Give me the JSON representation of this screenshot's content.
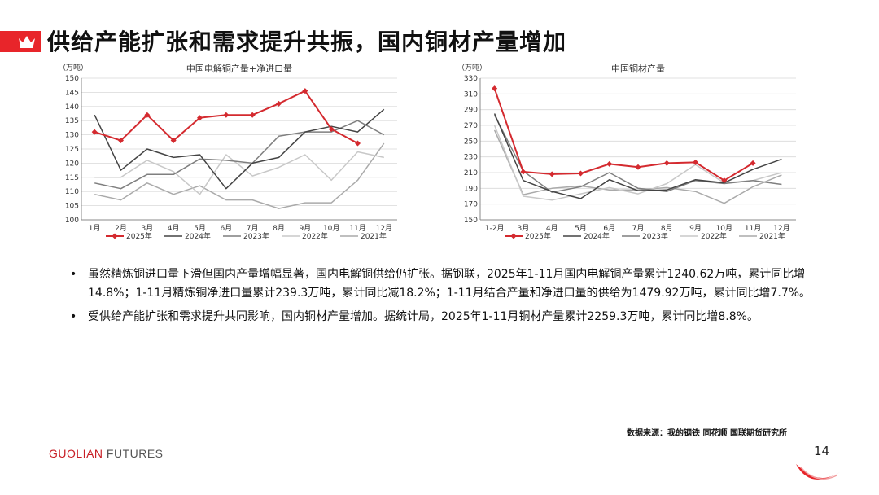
{
  "title": "供给产能扩张和需求提升共振，国内铜材产量增加",
  "icon": "crown-icon",
  "brand_color": "#e8252a",
  "chart_data": [
    {
      "type": "line",
      "title": "中国电解铜产量+净进口量",
      "ylabel": "（万吨）",
      "categories": [
        "1月",
        "2月",
        "3月",
        "4月",
        "5月",
        "6月",
        "7月",
        "8月",
        "9月",
        "10月",
        "11月",
        "12月"
      ],
      "ylim": [
        100,
        150
      ],
      "yticks": [
        100,
        105,
        110,
        115,
        120,
        125,
        130,
        135,
        140,
        145,
        150
      ],
      "grid": true,
      "legend_position": "bottom",
      "series": [
        {
          "name": "2025年",
          "color": "#d42a2f",
          "marker": "diamond",
          "values": [
            131,
            128,
            137,
            128,
            136,
            137,
            137,
            141,
            145.5,
            132,
            127,
            null
          ]
        },
        {
          "name": "2024年",
          "color": "#444444",
          "marker": "none",
          "values": [
            137,
            117.5,
            125,
            122,
            123,
            111,
            120,
            122,
            131,
            133,
            131,
            139
          ]
        },
        {
          "name": "2023年",
          "color": "#7f7f7f",
          "marker": "none",
          "values": [
            113,
            111,
            116,
            116,
            121.5,
            121,
            120,
            129.5,
            131,
            131,
            135,
            130
          ]
        },
        {
          "name": "2022年",
          "color": "#c8c8c8",
          "marker": "none",
          "values": [
            115,
            115,
            121,
            117,
            109,
            123,
            115.5,
            118.5,
            123,
            114,
            124,
            122
          ]
        },
        {
          "name": "2021年",
          "color": "#aaaaaa",
          "marker": "none",
          "values": [
            109,
            107,
            113,
            109,
            112,
            107,
            107,
            104,
            106,
            106,
            114,
            127
          ]
        }
      ]
    },
    {
      "type": "line",
      "title": "中国铜材产量",
      "ylabel": "（万吨）",
      "categories": [
        "1-2月",
        "3月",
        "4月",
        "5月",
        "6月",
        "7月",
        "8月",
        "9月",
        "10月",
        "11月",
        "12月"
      ],
      "ylim": [
        150,
        330
      ],
      "yticks": [
        150,
        170,
        190,
        210,
        230,
        250,
        270,
        290,
        310,
        330
      ],
      "grid": true,
      "legend_position": "bottom",
      "series": [
        {
          "name": "2025年",
          "color": "#d42a2f",
          "marker": "diamond",
          "values": [
            317,
            211,
            208,
            209,
            221,
            217,
            222,
            223,
            200,
            222,
            null
          ]
        },
        {
          "name": "2024年",
          "color": "#444444",
          "marker": "none",
          "values": [
            285,
            200,
            186,
            177,
            201,
            187,
            188,
            201,
            197,
            214,
            227
          ]
        },
        {
          "name": "2023年",
          "color": "#7f7f7f",
          "marker": "none",
          "values": [
            283,
            212,
            185,
            192,
            210,
            190,
            186,
            200,
            196,
            200,
            195
          ]
        },
        {
          "name": "2022年",
          "color": "#c8c8c8",
          "marker": "none",
          "values": [
            270,
            180,
            175,
            183,
            191,
            183,
            196,
            220,
            197,
            200,
            210
          ]
        },
        {
          "name": "2021年",
          "color": "#aaaaaa",
          "marker": "none",
          "values": [
            264,
            182,
            190,
            193,
            188,
            188,
            191,
            186,
            171,
            192,
            207
          ]
        }
      ]
    }
  ],
  "bullets": [
    "虽然精炼铜进口量下滑但国内产量增幅显著，国内电解铜供给仍扩张。据钢联，2025年1-11月国内电解铜产量累计1240.62万吨，累计同比增14.8%；1-11月精炼铜净进口量累计239.3万吨，累计同比减18.2%；1-11月结合产量和净进口量的供给为1479.92万吨，累计同比增7.7%。",
    "受供给产能扩张和需求提升共同影响，国内铜材产量增加。据统计局，2025年1-11月铜材产量累计2259.3万吨，累计同比增8.8%。"
  ],
  "bullet_symbol": "•",
  "source": "数据来源：我的钢铁  同花顺  国联期货研究所",
  "logo": {
    "part1": "GUOLIAN",
    "part2": " FUTURES"
  },
  "page_number": "14"
}
